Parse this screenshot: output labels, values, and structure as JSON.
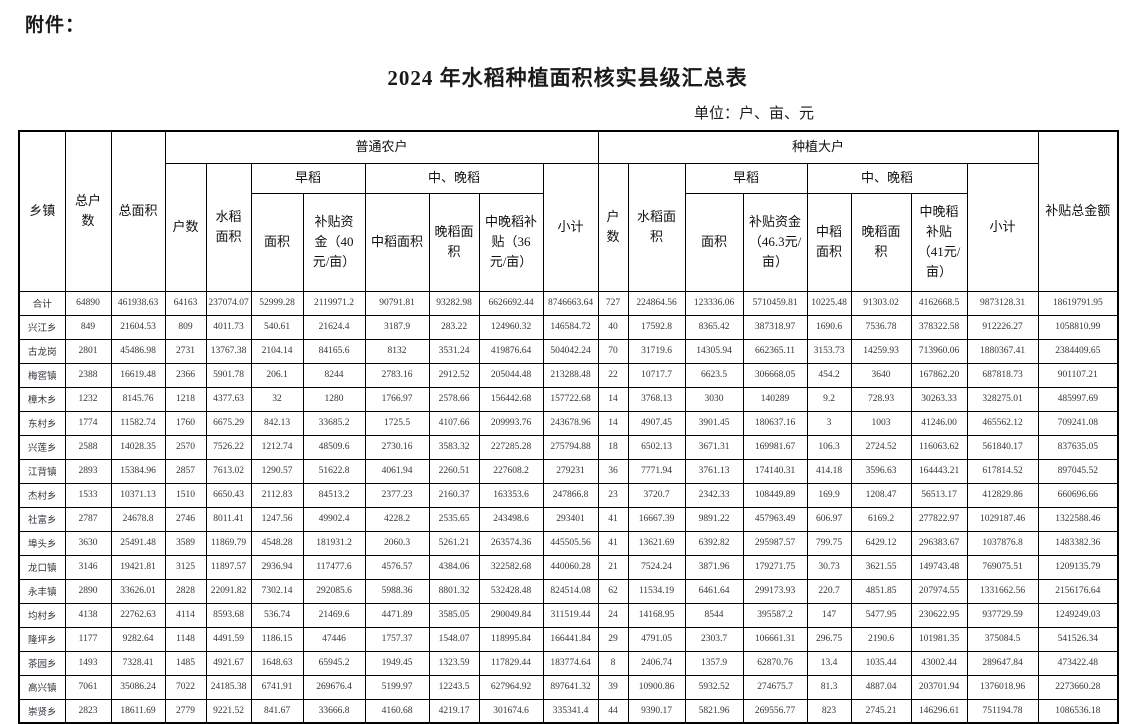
{
  "page": {
    "attachment_label": "附件：",
    "title": "2024 年水稻种植面积核实县级汇总表",
    "unit_note": "单位：户、亩、元"
  },
  "colors": {
    "background": "#ffffff",
    "text": "#1a1a1a",
    "border": "#000000"
  },
  "table": {
    "headers": {
      "township": "乡镇",
      "total_households": "总户数",
      "total_area": "总面积",
      "ordinary_farmers": "普通农户",
      "large_growers": "种植大户",
      "households": "户数",
      "rice_area": "水稻面积",
      "early_rice": "早稻",
      "mid_late_rice": "中、晚稻",
      "area": "面积",
      "subsidy_40": "补贴资金（40元/亩）",
      "mid_rice_area": "中稻面积",
      "late_rice_area": "晚稻面积",
      "mid_late_subsidy_36": "中晚稻补贴（36元/亩）",
      "subtotal": "小计",
      "large_rice_area": "水稻面积",
      "subsidy_46_3": "补贴资金（46.3元/亩）",
      "late_rice_area_large": "晚稻面积",
      "mid_late_subsidy_41": "中晚稻补贴（41元/亩）",
      "total_subsidy": "补贴总金额"
    },
    "rows": [
      {
        "township": "合计",
        "values": [
          "64890",
          "461938.63",
          "64163",
          "237074.07",
          "52999.28",
          "2119971.2",
          "90791.81",
          "93282.98",
          "6626692.44",
          "8746663.64",
          "727",
          "224864.56",
          "123336.06",
          "5710459.81",
          "10225.48",
          "91303.02",
          "4162668.5",
          "9873128.31",
          "18619791.95"
        ]
      },
      {
        "township": "兴江乡",
        "values": [
          "849",
          "21604.53",
          "809",
          "4011.73",
          "540.61",
          "21624.4",
          "3187.9",
          "283.22",
          "124960.32",
          "146584.72",
          "40",
          "17592.8",
          "8365.42",
          "387318.97",
          "1690.6",
          "7536.78",
          "378322.58",
          "912226.27",
          "1058810.99"
        ]
      },
      {
        "township": "古龙岗",
        "values": [
          "2801",
          "45486.98",
          "2731",
          "13767.38",
          "2104.14",
          "84165.6",
          "8132",
          "3531.24",
          "419876.64",
          "504042.24",
          "70",
          "31719.6",
          "14305.94",
          "662365.11",
          "3153.73",
          "14259.93",
          "713960.06",
          "1880367.41",
          "2384409.65"
        ]
      },
      {
        "township": "梅窖镇",
        "values": [
          "2388",
          "16619.48",
          "2366",
          "5901.78",
          "206.1",
          "8244",
          "2783.16",
          "2912.52",
          "205044.48",
          "213288.48",
          "22",
          "10717.7",
          "6623.5",
          "306668.05",
          "454.2",
          "3640",
          "167862.20",
          "687818.73",
          "901107.21"
        ]
      },
      {
        "township": "樟木乡",
        "values": [
          "1232",
          "8145.76",
          "1218",
          "4377.63",
          "32",
          "1280",
          "1766.97",
          "2578.66",
          "156442.68",
          "157722.68",
          "14",
          "3768.13",
          "3030",
          "140289",
          "9.2",
          "728.93",
          "30263.33",
          "328275.01",
          "485997.69"
        ]
      },
      {
        "township": "东村乡",
        "values": [
          "1774",
          "11582.74",
          "1760",
          "6675.29",
          "842.13",
          "33685.2",
          "1725.5",
          "4107.66",
          "209993.76",
          "243678.96",
          "14",
          "4907.45",
          "3901.45",
          "180637.16",
          "3",
          "1003",
          "41246.00",
          "465562.12",
          "709241.08"
        ]
      },
      {
        "township": "兴莲乡",
        "values": [
          "2588",
          "14028.35",
          "2570",
          "7526.22",
          "1212.74",
          "48509.6",
          "2730.16",
          "3583.32",
          "227285.28",
          "275794.88",
          "18",
          "6502.13",
          "3671.31",
          "169981.67",
          "106.3",
          "2724.52",
          "116063.62",
          "561840.17",
          "837635.05"
        ]
      },
      {
        "township": "江背镇",
        "values": [
          "2893",
          "15384.96",
          "2857",
          "7613.02",
          "1290.57",
          "51622.8",
          "4061.94",
          "2260.51",
          "227608.2",
          "279231",
          "36",
          "7771.94",
          "3761.13",
          "174140.31",
          "414.18",
          "3596.63",
          "164443.21",
          "617814.52",
          "897045.52"
        ]
      },
      {
        "township": "杰村乡",
        "values": [
          "1533",
          "10371.13",
          "1510",
          "6650.43",
          "2112.83",
          "84513.2",
          "2377.23",
          "2160.37",
          "163353.6",
          "247866.8",
          "23",
          "3720.7",
          "2342.33",
          "108449.89",
          "169.9",
          "1208.47",
          "56513.17",
          "412829.86",
          "660696.66"
        ]
      },
      {
        "township": "社富乡",
        "values": [
          "2787",
          "24678.8",
          "2746",
          "8011.41",
          "1247.56",
          "49902.4",
          "4228.2",
          "2535.65",
          "243498.6",
          "293401",
          "41",
          "16667.39",
          "9891.22",
          "457963.49",
          "606.97",
          "6169.2",
          "277822.97",
          "1029187.46",
          "1322588.46"
        ]
      },
      {
        "township": "埠头乡",
        "values": [
          "3630",
          "25491.48",
          "3589",
          "11869.79",
          "4548.28",
          "181931.2",
          "2060.3",
          "5261.21",
          "263574.36",
          "445505.56",
          "41",
          "13621.69",
          "6392.82",
          "295987.57",
          "799.75",
          "6429.12",
          "296383.67",
          "1037876.8",
          "1483382.36"
        ]
      },
      {
        "township": "龙口镇",
        "values": [
          "3146",
          "19421.81",
          "3125",
          "11897.57",
          "2936.94",
          "117477.6",
          "4576.57",
          "4384.06",
          "322582.68",
          "440060.28",
          "21",
          "7524.24",
          "3871.96",
          "179271.75",
          "30.73",
          "3621.55",
          "149743.48",
          "769075.51",
          "1209135.79"
        ]
      },
      {
        "township": "永丰镇",
        "values": [
          "2890",
          "33626.01",
          "2828",
          "22091.82",
          "7302.14",
          "292085.6",
          "5988.36",
          "8801.32",
          "532428.48",
          "824514.08",
          "62",
          "11534.19",
          "6461.64",
          "299173.93",
          "220.7",
          "4851.85",
          "207974.55",
          "1331662.56",
          "2156176.64"
        ]
      },
      {
        "township": "均村乡",
        "values": [
          "4138",
          "22762.63",
          "4114",
          "8593.68",
          "536.74",
          "21469.6",
          "4471.89",
          "3585.05",
          "290049.84",
          "311519.44",
          "24",
          "14168.95",
          "8544",
          "395587.2",
          "147",
          "5477.95",
          "230622.95",
          "937729.59",
          "1249249.03"
        ]
      },
      {
        "township": "隆坪乡",
        "values": [
          "1177",
          "9282.64",
          "1148",
          "4491.59",
          "1186.15",
          "47446",
          "1757.37",
          "1548.07",
          "118995.84",
          "166441.84",
          "29",
          "4791.05",
          "2303.7",
          "106661.31",
          "296.75",
          "2190.6",
          "101981.35",
          "375084.5",
          "541526.34"
        ]
      },
      {
        "township": "茶园乡",
        "values": [
          "1493",
          "7328.41",
          "1485",
          "4921.67",
          "1648.63",
          "65945.2",
          "1949.45",
          "1323.59",
          "117829.44",
          "183774.64",
          "8",
          "2406.74",
          "1357.9",
          "62870.76",
          "13.4",
          "1035.44",
          "43002.44",
          "289647.84",
          "473422.48"
        ]
      },
      {
        "township": "高兴镇",
        "values": [
          "7061",
          "35086.24",
          "7022",
          "24185.38",
          "6741.91",
          "269676.4",
          "5199.97",
          "12243.5",
          "627964.92",
          "897641.32",
          "39",
          "10900.86",
          "5932.52",
          "274675.7",
          "81.3",
          "4887.04",
          "203701.94",
          "1376018.96",
          "2273660.28"
        ]
      },
      {
        "township": "崇贤乡",
        "values": [
          "2823",
          "18611.69",
          "2779",
          "9221.52",
          "841.67",
          "33666.8",
          "4160.68",
          "4219.17",
          "301674.6",
          "335341.4",
          "44",
          "9390.17",
          "5821.96",
          "269556.77",
          "823",
          "2745.21",
          "146296.61",
          "751194.78",
          "1086536.18"
        ]
      }
    ]
  }
}
